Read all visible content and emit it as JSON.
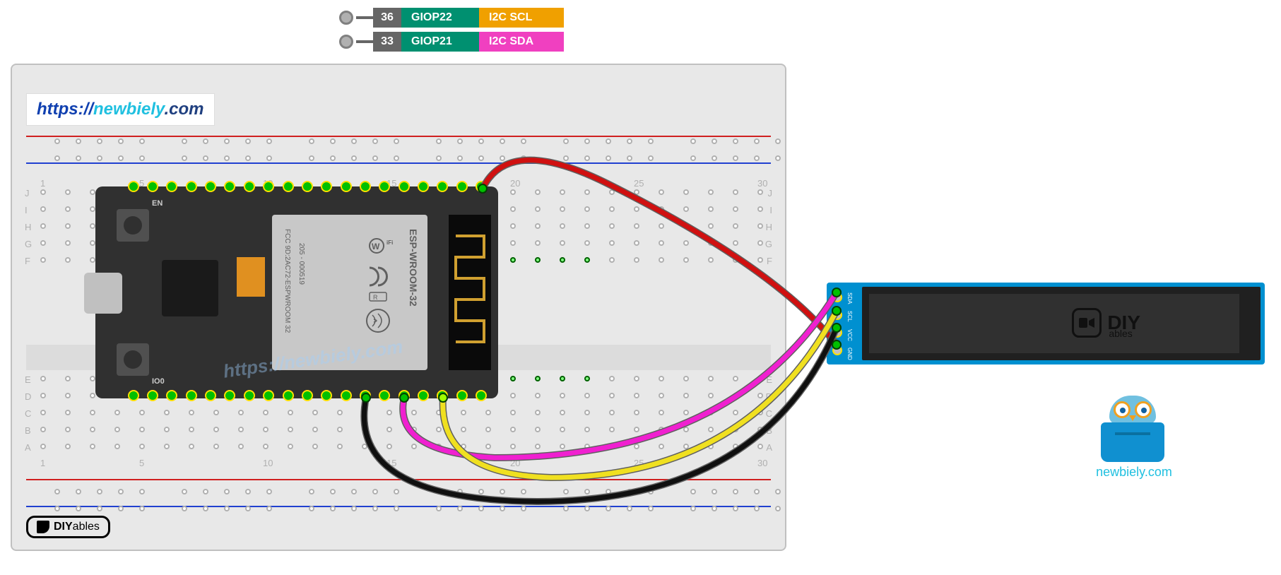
{
  "legend": {
    "rows": [
      {
        "pin": "36",
        "gpio": "GIOP22",
        "func": "I2C SCL",
        "gpio_bg": "#009070",
        "func_bg": "#f0a000"
      },
      {
        "pin": "33",
        "gpio": "GIOP21",
        "func": "I2C SDA",
        "gpio_bg": "#009070",
        "func_bg": "#f040c0"
      }
    ],
    "pin_bg": "#666666"
  },
  "url": {
    "proto": "https://",
    "brand1": "new",
    "brand2": "biely",
    "tld": ".com",
    "color_proto": "#1040b0",
    "color_brand": "#20c0e0",
    "color_tld": "#204080"
  },
  "breadboard": {
    "bg": "#e8e8e8",
    "border": "#c0c0c0",
    "rail_red": "#d02020",
    "rail_blue": "#2040d0",
    "cols": [
      1,
      5,
      10,
      15,
      20,
      25,
      30
    ],
    "rows_top": [
      "J",
      "I",
      "H",
      "G",
      "F"
    ],
    "rows_bot": [
      "E",
      "D",
      "C",
      "B",
      "A"
    ],
    "hole_color": "#b0b0b0",
    "diyables": "DIY",
    "diyables2": "ables"
  },
  "esp32": {
    "bg": "#303030",
    "btn_en": "EN",
    "btn_io0": "IO0",
    "shield_txt1": "ESP-WROOM-32",
    "shield_txt2": "FCC 9D:2AC72-ESPWROOM 32",
    "shield_txt3": "205 - 000519",
    "wifi_label": "WiFi",
    "pin_count": 19,
    "pin_color": "#00c000",
    "watermark": "https://newbiely.com"
  },
  "oled": {
    "bg": "#0090d0",
    "screen_bg": "#202020",
    "pins": [
      "GND",
      "VCC",
      "SCL",
      "SDA"
    ],
    "logo": "DIY",
    "logo2": "ables"
  },
  "wires": {
    "red": {
      "color": "#d01010"
    },
    "magenta": {
      "color": "#f020d0"
    },
    "yellow": {
      "color": "#f0e020"
    },
    "black": {
      "color": "#101010"
    },
    "outline": "#606060",
    "width": 7
  },
  "mascot": {
    "url": "newbiely.com",
    "url_color": "#20c0e0",
    "body_color": "#1090d0",
    "head_color": "#70c0e0",
    "glasses": "#f0a020"
  }
}
